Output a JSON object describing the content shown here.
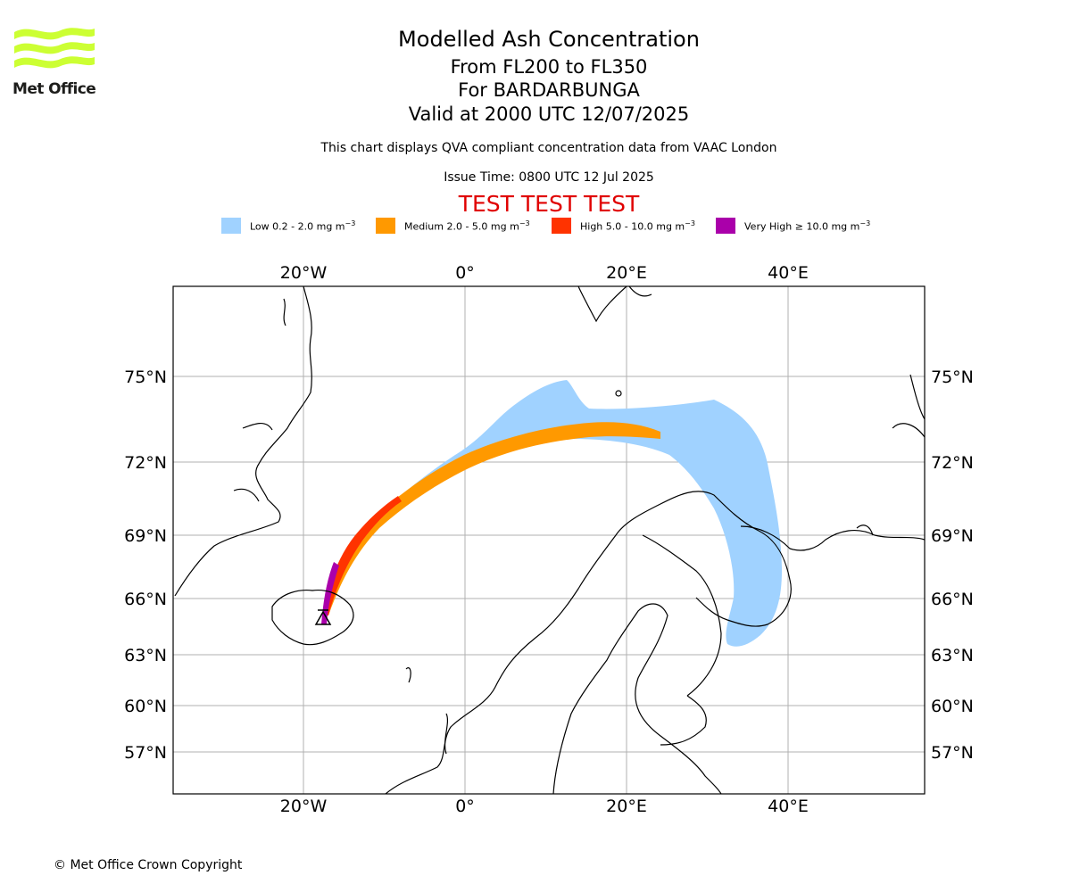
{
  "logo": {
    "text": "Met Office",
    "icon": "met-office-wave-logo-icon",
    "color": "#ccff33"
  },
  "header": {
    "title": "Modelled Ash Concentration",
    "levels": "From FL200 to FL350",
    "volcano": "For BARDARBUNGA",
    "valid": "Valid at 2000 UTC 12/07/2025",
    "description": "This chart displays QVA compliant concentration data from VAAC London",
    "issue_time": "Issue Time: 0800 UTC 12 Jul 2025",
    "test_banner": "TEST TEST TEST"
  },
  "legend": [
    {
      "label": "Low 0.2 - 2.0 mg m",
      "unit_power": "−3",
      "color": "#a0d2ff"
    },
    {
      "label": "Medium 2.0 - 5.0 mg m",
      "unit_power": "−3",
      "color": "#ff9900"
    },
    {
      "label": "High 5.0 - 10.0 mg m",
      "unit_power": "−3",
      "color": "#ff3300"
    },
    {
      "label": "Very High  ≥  10.0 mg m",
      "unit_power": "−3",
      "color": "#aa00aa"
    }
  ],
  "map": {
    "lon_labels": [
      "20°W",
      "0°",
      "20°E",
      "40°E"
    ],
    "lat_labels": [
      "75°N",
      "72°N",
      "69°N",
      "66°N",
      "63°N",
      "60°N",
      "57°N"
    ],
    "grid_color": "#b0b0b0",
    "volcano_marker_icon": "volcano-triangle-icon"
  },
  "footer": {
    "copyright": "© Met Office Crown Copyright"
  }
}
